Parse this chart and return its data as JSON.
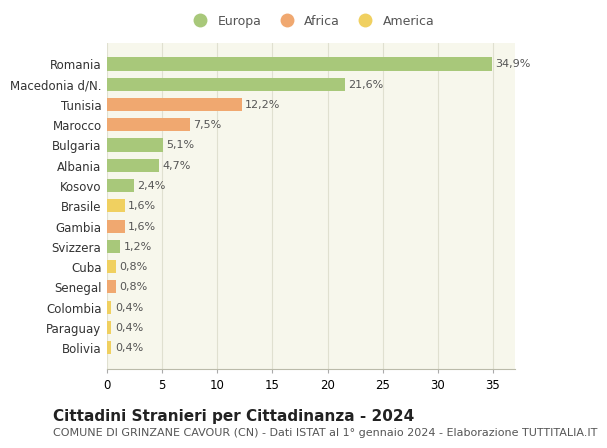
{
  "categories": [
    "Romania",
    "Macedonia d/N.",
    "Tunisia",
    "Marocco",
    "Bulgaria",
    "Albania",
    "Kosovo",
    "Brasile",
    "Gambia",
    "Svizzera",
    "Cuba",
    "Senegal",
    "Colombia",
    "Paraguay",
    "Bolivia"
  ],
  "values": [
    34.9,
    21.6,
    12.2,
    7.5,
    5.1,
    4.7,
    2.4,
    1.6,
    1.6,
    1.2,
    0.8,
    0.8,
    0.4,
    0.4,
    0.4
  ],
  "labels": [
    "34,9%",
    "21,6%",
    "12,2%",
    "7,5%",
    "5,1%",
    "4,7%",
    "2,4%",
    "1,6%",
    "1,6%",
    "1,2%",
    "0,8%",
    "0,8%",
    "0,4%",
    "0,4%",
    "0,4%"
  ],
  "colors": [
    "#a8c87a",
    "#a8c87a",
    "#f0a870",
    "#f0a870",
    "#a8c87a",
    "#a8c87a",
    "#a8c87a",
    "#f0d060",
    "#f0a870",
    "#a8c87a",
    "#f0d060",
    "#f0a870",
    "#f0d060",
    "#f0d060",
    "#f0d060"
  ],
  "legend_labels": [
    "Europa",
    "Africa",
    "America"
  ],
  "legend_colors": [
    "#a8c87a",
    "#f0a870",
    "#f0d060"
  ],
  "title": "Cittadini Stranieri per Cittadinanza - 2024",
  "subtitle": "COMUNE DI GRINZANE CAVOUR (CN) - Dati ISTAT al 1° gennaio 2024 - Elaborazione TUTTITALIA.IT",
  "xlim": [
    0,
    37
  ],
  "xticks": [
    0,
    5,
    10,
    15,
    20,
    25,
    30,
    35
  ],
  "bg_color": "#ffffff",
  "plot_bg_color": "#f7f7ec",
  "grid_color": "#e0e0d0",
  "bar_height": 0.65,
  "title_fontsize": 11,
  "subtitle_fontsize": 8,
  "tick_fontsize": 8.5,
  "label_fontsize": 8
}
